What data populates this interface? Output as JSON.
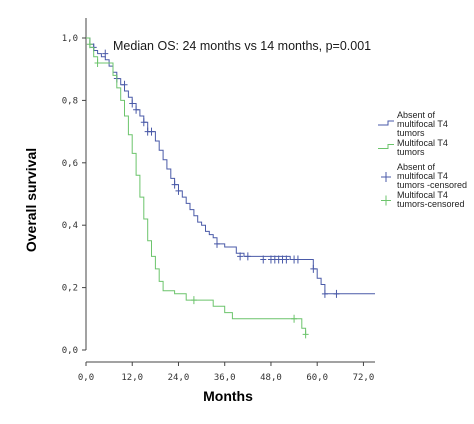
{
  "chart_data": {
    "type": "line",
    "title": "",
    "annotation": "Median OS: 24 months vs 14 months, p=0.001",
    "xlabel": "Months",
    "ylabel": "Overall survival",
    "xlim": [
      0,
      75
    ],
    "ylim": [
      0,
      1.0
    ],
    "x_ticks": [
      0,
      12,
      24,
      36,
      48,
      60,
      72
    ],
    "x_tick_labels": [
      "0,0",
      "12,0",
      "24,0",
      "36,0",
      "48,0",
      "60,0",
      "72,0"
    ],
    "y_ticks": [
      0,
      0.2,
      0.4,
      0.6,
      0.8,
      1.0
    ],
    "y_tick_labels": [
      "0,0",
      "0,2",
      "0,4",
      "0,6",
      "0,8",
      "1,0"
    ],
    "grid": false,
    "legend_position": "right",
    "legend": [
      {
        "label_lines": [
          "Absent of",
          "multifocal T4",
          "tumors"
        ],
        "marker": "line",
        "color": "#4a5aa8"
      },
      {
        "label_lines": [
          "Multifocal T4",
          "tumors"
        ],
        "marker": "line",
        "color": "#6cc46c"
      },
      {
        "label_lines": [
          "Absent of",
          "multifocal T4",
          "tumors -censored"
        ],
        "marker": "plus",
        "color": "#4a5aa8"
      },
      {
        "label_lines": [
          "Multifocal T4",
          "tumors-censored"
        ],
        "marker": "plus",
        "color": "#6cc46c"
      }
    ],
    "series": [
      {
        "color": "#4a5aa8",
        "steps": [
          [
            0,
            1.0
          ],
          [
            1,
            0.98
          ],
          [
            2,
            0.96
          ],
          [
            3,
            0.95
          ],
          [
            4,
            0.94
          ],
          [
            5,
            0.93
          ],
          [
            6,
            0.91
          ],
          [
            7,
            0.89
          ],
          [
            8,
            0.87
          ],
          [
            9,
            0.85
          ],
          [
            10,
            0.83
          ],
          [
            11,
            0.81
          ],
          [
            12,
            0.79
          ],
          [
            13,
            0.77
          ],
          [
            14,
            0.75
          ],
          [
            15,
            0.73
          ],
          [
            16,
            0.7
          ],
          [
            18,
            0.67
          ],
          [
            19,
            0.64
          ],
          [
            20,
            0.61
          ],
          [
            21,
            0.58
          ],
          [
            22,
            0.55
          ],
          [
            23,
            0.53
          ],
          [
            24,
            0.51
          ],
          [
            25,
            0.49
          ],
          [
            26,
            0.47
          ],
          [
            27,
            0.45
          ],
          [
            28,
            0.43
          ],
          [
            29,
            0.41
          ],
          [
            30,
            0.4
          ],
          [
            31,
            0.38
          ],
          [
            32,
            0.37
          ],
          [
            33,
            0.36
          ],
          [
            34,
            0.34
          ],
          [
            36,
            0.33
          ],
          [
            39,
            0.31
          ],
          [
            41,
            0.3
          ],
          [
            53,
            0.29
          ],
          [
            59,
            0.26
          ],
          [
            60,
            0.23
          ],
          [
            61,
            0.21
          ],
          [
            62,
            0.18
          ],
          [
            75,
            0.18
          ]
        ],
        "censored": [
          [
            2,
            0.97
          ],
          [
            5,
            0.95
          ],
          [
            8,
            0.87
          ],
          [
            10,
            0.85
          ],
          [
            12,
            0.79
          ],
          [
            13,
            0.77
          ],
          [
            15,
            0.73
          ],
          [
            16,
            0.7
          ],
          [
            17,
            0.7
          ],
          [
            23,
            0.53
          ],
          [
            24,
            0.51
          ],
          [
            34,
            0.34
          ],
          [
            40,
            0.3
          ],
          [
            42,
            0.3
          ],
          [
            46,
            0.29
          ],
          [
            48,
            0.29
          ],
          [
            49,
            0.29
          ],
          [
            50,
            0.29
          ],
          [
            51,
            0.29
          ],
          [
            52,
            0.29
          ],
          [
            54,
            0.29
          ],
          [
            55,
            0.29
          ],
          [
            59,
            0.26
          ],
          [
            62,
            0.18
          ],
          [
            65,
            0.18
          ]
        ]
      },
      {
        "color": "#6cc46c",
        "steps": [
          [
            0,
            1.0
          ],
          [
            1,
            0.97
          ],
          [
            2,
            0.94
          ],
          [
            3,
            0.92
          ],
          [
            7,
            0.88
          ],
          [
            8,
            0.84
          ],
          [
            9,
            0.8
          ],
          [
            10,
            0.75
          ],
          [
            11,
            0.69
          ],
          [
            12,
            0.63
          ],
          [
            13,
            0.56
          ],
          [
            14,
            0.49
          ],
          [
            15,
            0.42
          ],
          [
            16,
            0.35
          ],
          [
            17,
            0.3
          ],
          [
            18,
            0.26
          ],
          [
            19,
            0.22
          ],
          [
            20,
            0.19
          ],
          [
            23,
            0.18
          ],
          [
            26,
            0.16
          ],
          [
            33,
            0.14
          ],
          [
            36,
            0.12
          ],
          [
            38,
            0.1
          ],
          [
            56,
            0.07
          ],
          [
            57,
            0.05
          ]
        ],
        "censored": [
          [
            1,
            0.98
          ],
          [
            3,
            0.92
          ],
          [
            28,
            0.16
          ],
          [
            54,
            0.1
          ],
          [
            57,
            0.05
          ]
        ]
      }
    ]
  }
}
